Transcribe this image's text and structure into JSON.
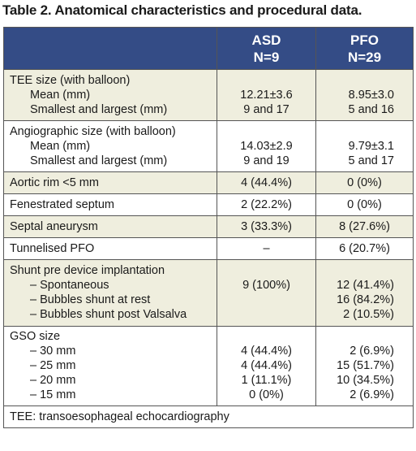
{
  "title": "Table 2. Anatomical characteristics and procedural data.",
  "header": {
    "col2": [
      "ASD",
      "N=9"
    ],
    "col3": [
      "PFO",
      "N=29"
    ]
  },
  "rows": [
    {
      "lines": [
        "TEE size (with balloon)",
        "Mean (mm)",
        "Smallest and largest (mm)"
      ],
      "c2": [
        "",
        "12.21±3.6",
        "9 and 17"
      ],
      "c3": [
        "",
        "8.95±3.0",
        "5 and 16"
      ]
    },
    {
      "lines": [
        "Angiographic size (with balloon)",
        "Mean (mm)",
        "Smallest and largest (mm)"
      ],
      "c2": [
        "",
        "14.03±2.9",
        "9 and 19"
      ],
      "c3": [
        "",
        "9.79±3.1",
        "5 and 17"
      ]
    },
    {
      "lines": [
        "Aortic rim <5 mm"
      ],
      "c2": [
        "4 (44.4%)"
      ],
      "c3": [
        "0 (0%)"
      ]
    },
    {
      "lines": [
        "Fenestrated septum"
      ],
      "c2": [
        "2 (22.2%)"
      ],
      "c3": [
        "0 (0%)"
      ]
    },
    {
      "lines": [
        "Septal aneurysm"
      ],
      "c2": [
        "3 (33.3%)"
      ],
      "c3": [
        "8 (27.6%)"
      ]
    },
    {
      "lines": [
        "Tunnelised PFO"
      ],
      "c2": [
        "–"
      ],
      "c3": [
        "6 (20.7%)"
      ]
    },
    {
      "lines": [
        "Shunt pre device implantation",
        "– Spontaneous",
        "– Bubbles shunt at rest",
        "– Bubbles shunt post Valsalva"
      ],
      "c2": [
        "",
        "9 (100%)",
        "",
        ""
      ],
      "c3": [
        "",
        "12 (41.4%)",
        "16 (84.2%)",
        "2 (10.5%)"
      ]
    },
    {
      "lines": [
        "GSO size",
        "– 30 mm",
        "– 25 mm",
        "– 20 mm",
        "– 15 mm"
      ],
      "c2": [
        "",
        "4 (44.4%)",
        "4 (44.4%)",
        "1 (11.1%)",
        "0 (0%)"
      ],
      "c3": [
        "",
        "2 (6.9%)",
        "15 (51.7%)",
        "10 (34.5%)",
        "2 (6.9%)"
      ]
    }
  ],
  "footnote": "TEE: transoesophageal echocardiography",
  "colors": {
    "header_bg": "#344c86",
    "shade_bg": "#efeede",
    "border": "#555555"
  }
}
